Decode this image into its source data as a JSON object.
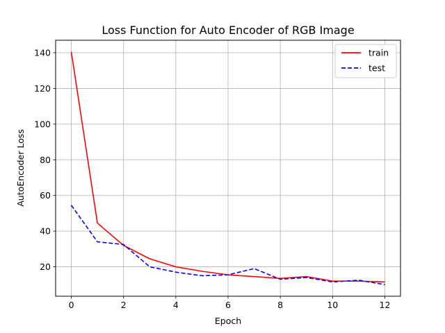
{
  "chart_data": {
    "type": "line",
    "title": "Loss Function for Auto Encoder of RGB Image",
    "xlabel": "Epoch",
    "ylabel": "AutoEncoder Loss",
    "xlim": [
      -0.6,
      12.6
    ],
    "ylim": [
      3.5,
      147
    ],
    "xticks": [
      0,
      2,
      4,
      6,
      8,
      10,
      12
    ],
    "yticks": [
      20,
      40,
      60,
      80,
      100,
      120,
      140
    ],
    "xtick_labels": [
      "0",
      "2",
      "4",
      "6",
      "8",
      "10",
      "12"
    ],
    "ytick_labels": [
      "20",
      "40",
      "60",
      "80",
      "100",
      "120",
      "140"
    ],
    "grid": true,
    "legend_position": "top-right",
    "x": [
      0,
      1,
      2,
      3,
      4,
      5,
      6,
      7,
      8,
      9,
      10,
      11,
      12
    ],
    "series": [
      {
        "name": "train",
        "color": "#ff0000",
        "style": "solid",
        "values": [
          140.5,
          44.5,
          32.0,
          24.5,
          20.0,
          17.5,
          15.5,
          14.5,
          13.5,
          14.5,
          12.0,
          12.0,
          11.5
        ]
      },
      {
        "name": "test",
        "color": "#0000ff",
        "style": "dashed",
        "values": [
          54.5,
          34.0,
          32.5,
          20.0,
          17.0,
          15.0,
          15.5,
          19.0,
          13.0,
          14.0,
          11.5,
          12.5,
          10.0
        ]
      }
    ]
  }
}
